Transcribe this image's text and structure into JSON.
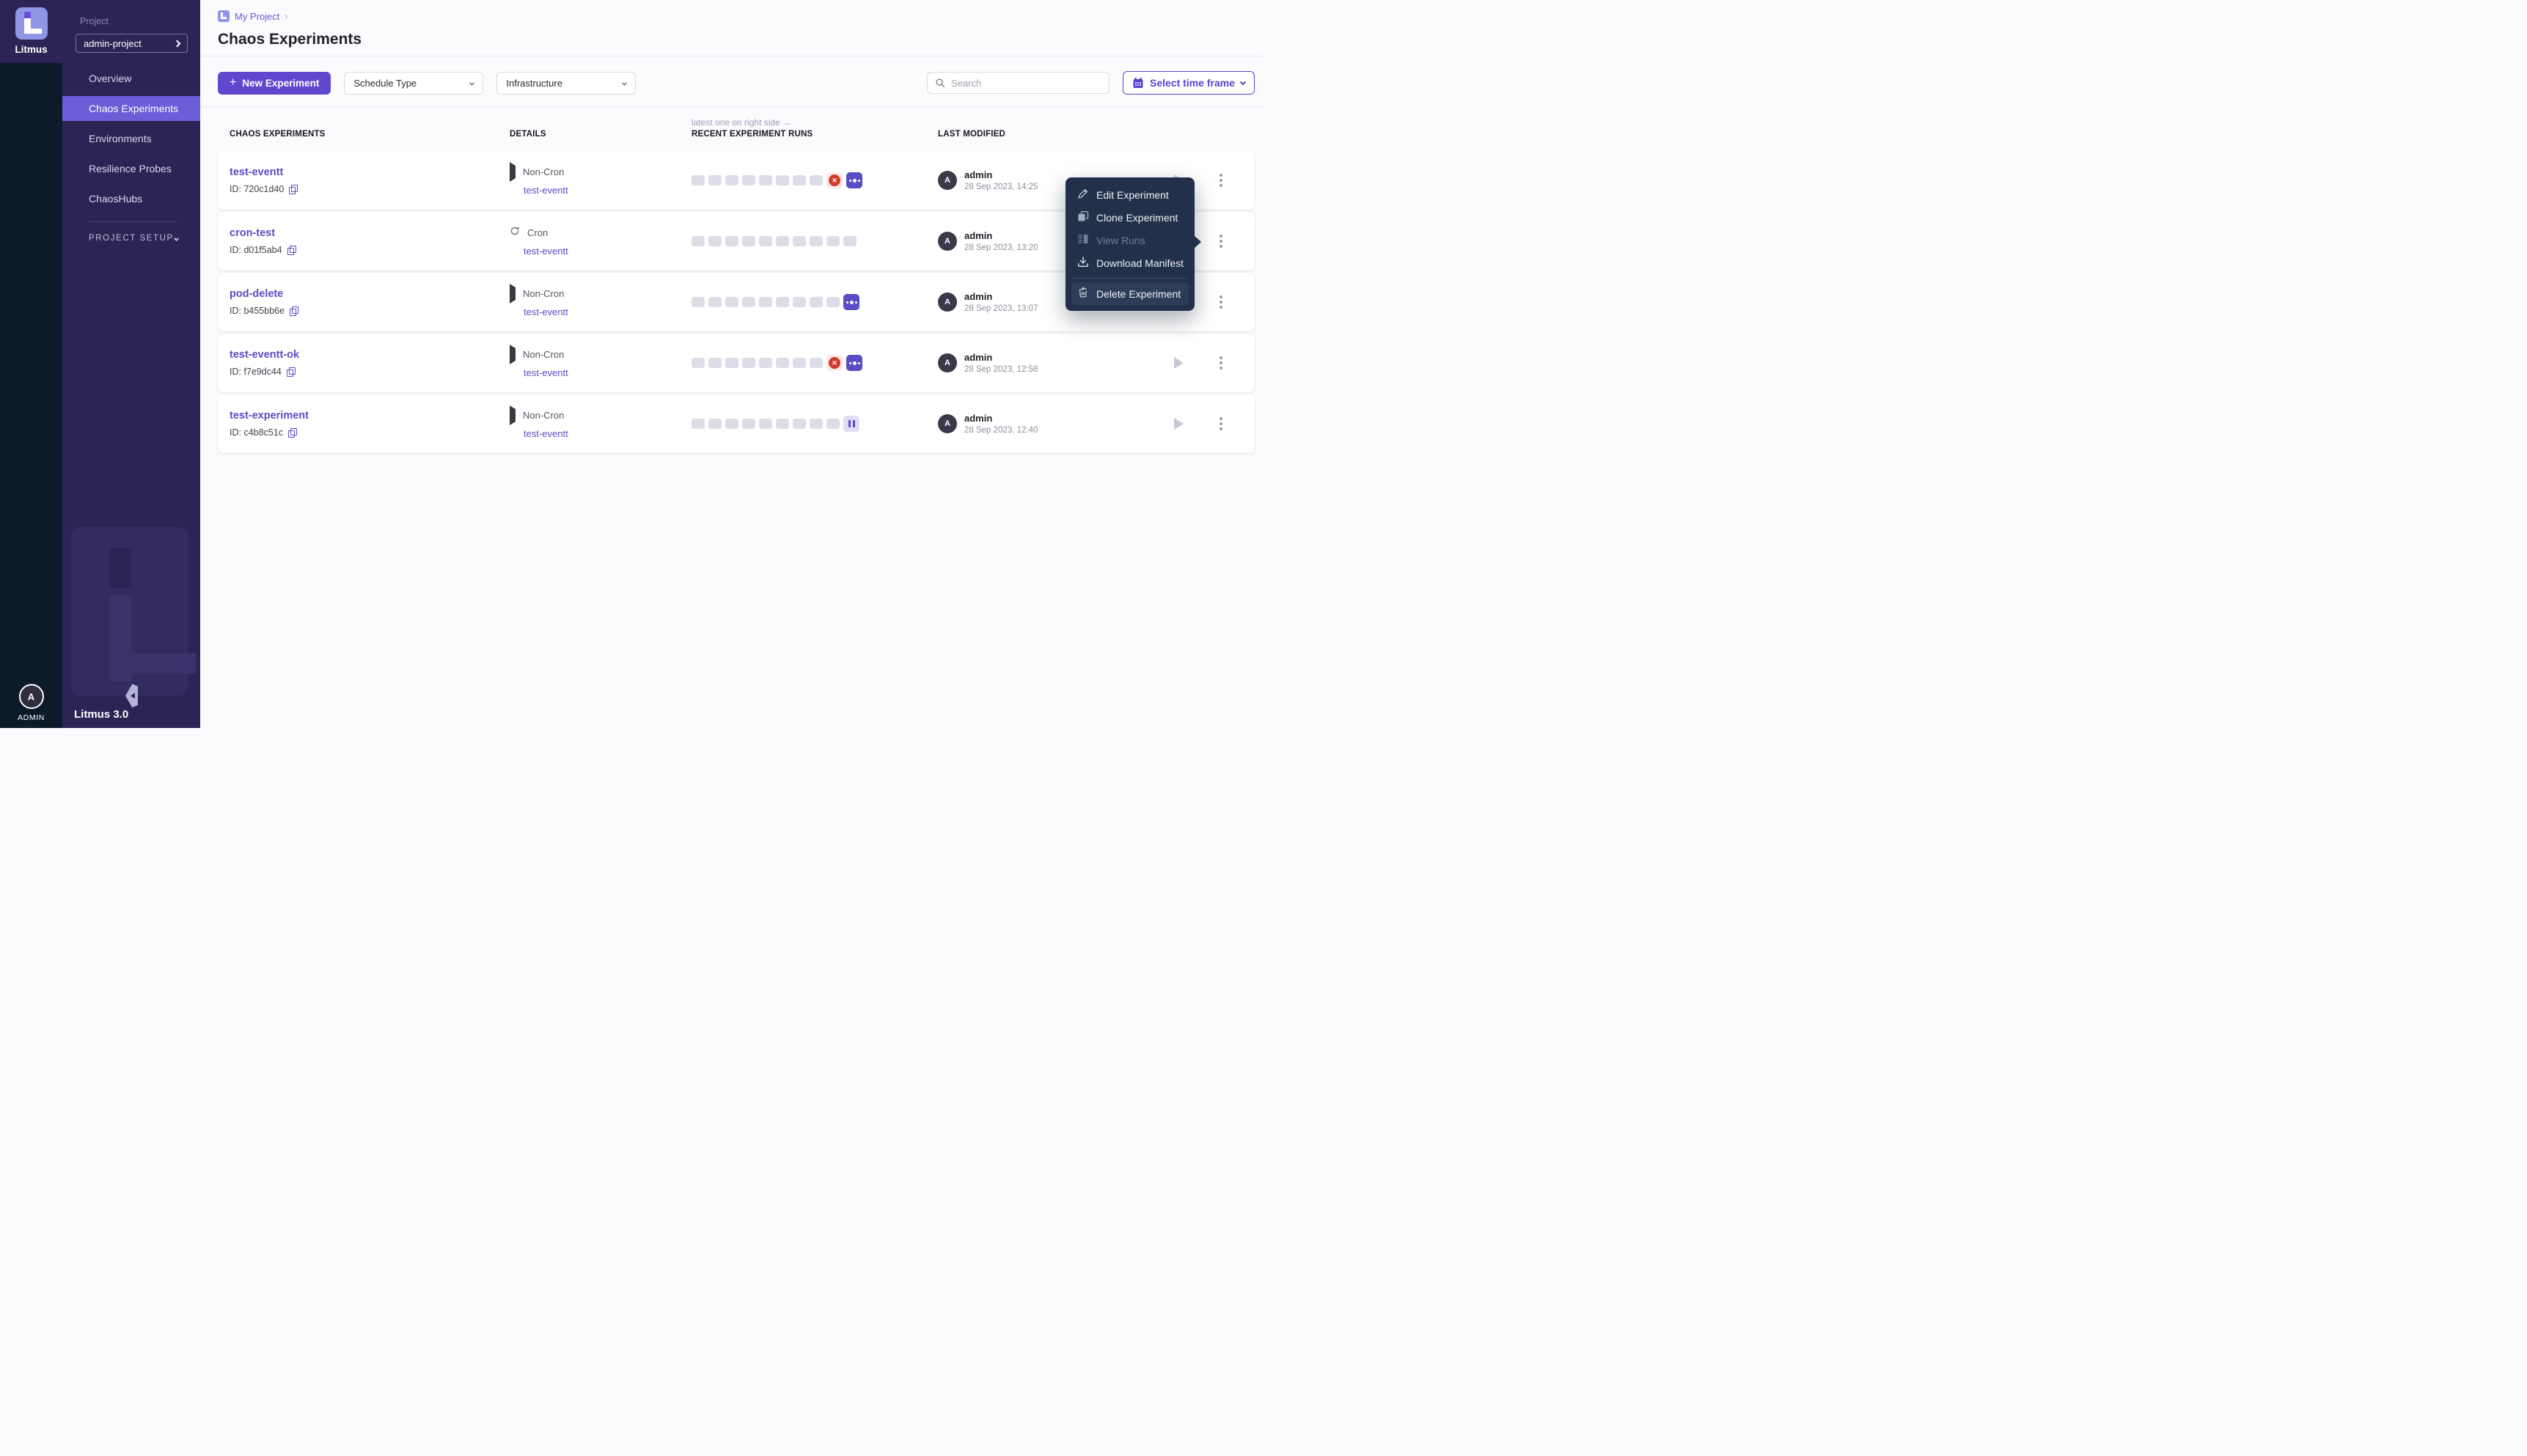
{
  "sidebar": {
    "brand": "Litmus",
    "version": "Litmus 3.0",
    "project_label": "Project",
    "project_value": "admin-project",
    "items": [
      {
        "label": "Overview",
        "active": false
      },
      {
        "label": "Chaos Experiments",
        "active": true
      },
      {
        "label": "Environments",
        "active": false
      },
      {
        "label": "Resilience Probes",
        "active": false
      },
      {
        "label": "ChaosHubs",
        "active": false
      }
    ],
    "section_label": "PROJECT SETUP",
    "user_label": "ADMIN",
    "avatar_initial": "A"
  },
  "header": {
    "breadcrumb": "My Project",
    "breadcrumb_sep": "›",
    "title": "Chaos Experiments"
  },
  "toolbar": {
    "new_experiment": "New Experiment",
    "plus": "+",
    "schedule_type": "Schedule Type",
    "infrastructure": "Infrastructure",
    "search_placeholder": "Search",
    "time_frame": "Select time frame"
  },
  "table": {
    "note": "latest one on right side →",
    "columns": [
      "CHAOS EXPERIMENTS",
      "DETAILS",
      "RECENT EXPERIMENT RUNS",
      "LAST MODIFIED"
    ],
    "rows": [
      {
        "name": "test-eventt",
        "id": "ID: 720c1d40",
        "schedule": "Non-Cron",
        "schedule_icon": "non-cron",
        "ref": "test-eventt",
        "runs": [
          "empty",
          "empty",
          "empty",
          "empty",
          "empty",
          "empty",
          "empty",
          "empty",
          "failed",
          "running"
        ],
        "modified_by": "admin",
        "modified_at": "28 Sep 2023, 14:25",
        "avatar_initial": "A"
      },
      {
        "name": "cron-test",
        "id": "ID: d01f5ab4",
        "schedule": "Cron",
        "schedule_icon": "cron",
        "ref": "test-eventt",
        "runs": [
          "empty",
          "empty",
          "empty",
          "empty",
          "empty",
          "empty",
          "empty",
          "empty",
          "empty",
          "empty"
        ],
        "modified_by": "admin",
        "modified_at": "28 Sep 2023, 13:20",
        "avatar_initial": "A"
      },
      {
        "name": "pod-delete",
        "id": "ID: b455bb6e",
        "schedule": "Non-Cron",
        "schedule_icon": "non-cron",
        "ref": "test-eventt",
        "runs": [
          "empty",
          "empty",
          "empty",
          "empty",
          "empty",
          "empty",
          "empty",
          "empty",
          "empty",
          "running"
        ],
        "modified_by": "admin",
        "modified_at": "28 Sep 2023, 13:07",
        "avatar_initial": "A"
      },
      {
        "name": "test-eventt-ok",
        "id": "ID: f7e9dc44",
        "schedule": "Non-Cron",
        "schedule_icon": "non-cron",
        "ref": "test-eventt",
        "runs": [
          "empty",
          "empty",
          "empty",
          "empty",
          "empty",
          "empty",
          "empty",
          "empty",
          "failed",
          "running"
        ],
        "modified_by": "admin",
        "modified_at": "28 Sep 2023, 12:58",
        "avatar_initial": "A"
      },
      {
        "name": "test-experiment",
        "id": "ID: c4b8c51c",
        "schedule": "Non-Cron",
        "schedule_icon": "non-cron",
        "ref": "test-eventt",
        "runs": [
          "empty",
          "empty",
          "empty",
          "empty",
          "empty",
          "empty",
          "empty",
          "empty",
          "empty",
          "paused"
        ],
        "modified_by": "admin",
        "modified_at": "28 Sep 2023, 12:40",
        "avatar_initial": "A"
      }
    ]
  },
  "context_menu": {
    "items": [
      {
        "label": "Edit Experiment",
        "icon": "pencil",
        "disabled": false,
        "highlighted": false,
        "divider_before": false
      },
      {
        "label": "Clone Experiment",
        "icon": "clone",
        "disabled": false,
        "highlighted": false,
        "divider_before": false
      },
      {
        "label": "View Runs",
        "icon": "runs",
        "disabled": true,
        "highlighted": false,
        "divider_before": false
      },
      {
        "label": "Download Manifest",
        "icon": "download",
        "disabled": false,
        "highlighted": false,
        "divider_before": false
      },
      {
        "label": "Delete Experiment",
        "icon": "trash",
        "disabled": false,
        "highlighted": true,
        "divider_before": true
      }
    ]
  },
  "colors": {
    "brand_purple": "#5a4cc5",
    "button_purple": "#6146d0",
    "nav_selected": "#6b5ed6",
    "sidebar_purple": "#2b2454",
    "rail_navy": "#0c1a29",
    "menu_navy": "#22304a",
    "failed_red": "#cf3b2c",
    "run_empty": "#dcdde7"
  }
}
